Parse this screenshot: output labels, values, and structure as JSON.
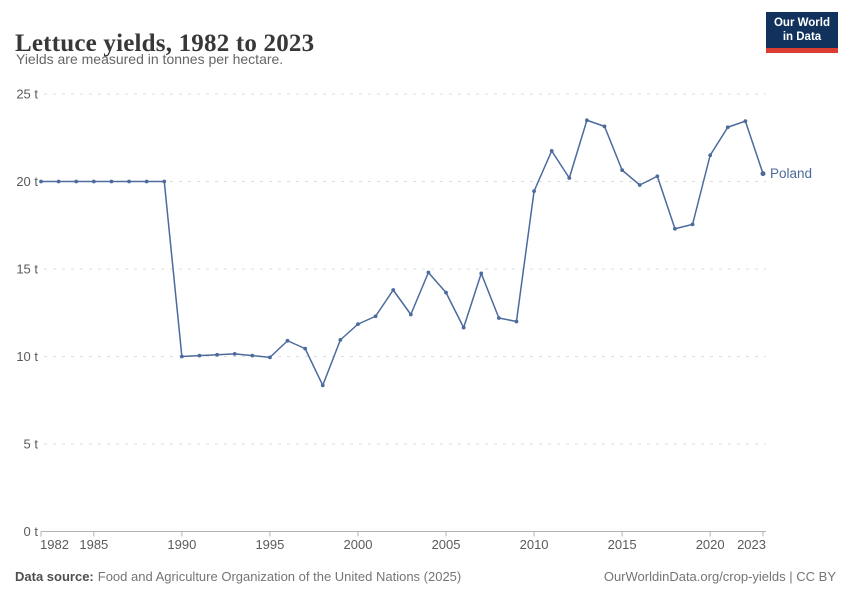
{
  "header": {
    "title": "Lettuce yields, 1982 to 2023",
    "subtitle": "Yields are measured in tonnes per hectare.",
    "logo": {
      "line1": "Our World",
      "line2": "in Data"
    }
  },
  "chart_data": {
    "type": "line",
    "title": "Lettuce yields, 1982 to 2023",
    "ylabel": "",
    "xlabel": "",
    "unit_suffix": " t",
    "ylim": [
      0,
      25
    ],
    "yticks": [
      0,
      5,
      10,
      15,
      20,
      25
    ],
    "xticks": [
      1982,
      1985,
      1990,
      1995,
      2000,
      2005,
      2010,
      2015,
      2020,
      2023
    ],
    "grid": "horizontal-dashed",
    "legend_position": "end-of-line-label",
    "x": [
      1982,
      1983,
      1984,
      1985,
      1986,
      1987,
      1988,
      1989,
      1990,
      1991,
      1992,
      1993,
      1994,
      1995,
      1996,
      1997,
      1998,
      1999,
      2000,
      2001,
      2002,
      2003,
      2004,
      2005,
      2006,
      2007,
      2008,
      2009,
      2010,
      2011,
      2012,
      2013,
      2014,
      2015,
      2016,
      2017,
      2018,
      2019,
      2020,
      2021,
      2022,
      2023
    ],
    "series": [
      {
        "name": "Poland",
        "values": [
          20.0,
          20.0,
          20.0,
          20.0,
          20.0,
          20.0,
          20.0,
          20.0,
          10.0,
          10.05,
          10.1,
          10.15,
          10.05,
          9.95,
          10.9,
          10.45,
          8.35,
          10.95,
          11.85,
          12.3,
          13.8,
          12.4,
          14.8,
          13.65,
          11.65,
          14.75,
          12.2,
          12.0,
          19.45,
          21.75,
          20.2,
          23.5,
          23.15,
          20.65,
          19.8,
          20.3,
          17.3,
          17.55,
          21.5,
          23.1,
          23.45,
          20.45
        ]
      }
    ]
  },
  "footer": {
    "source_label": "Data source:",
    "source_text": "Food and Agriculture Organization of the United Nations (2025)",
    "credit": "OurWorldinData.org/crop-yields | CC BY"
  },
  "colors": {
    "series": "#4c6a9c",
    "grid": "#dcdcdc",
    "axis": "#b3b3b3",
    "tick_label": "#5b5b5b",
    "logo_bg": "#12325e",
    "logo_bar": "#dc3d33"
  }
}
